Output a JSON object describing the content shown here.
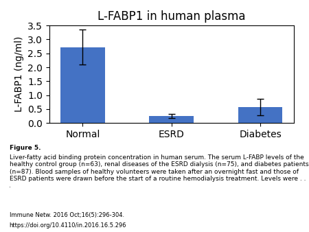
{
  "chart_data": {
    "type": "bar",
    "title": "L-FABP1 in human plasma",
    "categories": [
      "Normal",
      "ESRD",
      "Diabetes"
    ],
    "values": [
      2.72,
      0.25,
      0.57
    ],
    "errors": [
      0.63,
      0.07,
      0.3
    ],
    "color": "#4472C4",
    "ylabel": "L-FABP1 (ng/ml)",
    "ylim": [
      0,
      3.5
    ],
    "yticks": [
      {
        "value": 0,
        "label": "0.0"
      },
      0.5,
      {
        "value": 1,
        "label": "1.0"
      },
      1.5,
      {
        "value": 2,
        "label": "2.0"
      },
      2.5,
      {
        "value": 3,
        "label": "3.0"
      },
      3.5
    ],
    "grid": false,
    "annotations": [
      "Figure 5.",
      "Liver-fatty acid binding protein concentration in human serum. The serum L-FABP levels of the healthy control group (n=63), renal diseases of the ESRD dialysis (n=75), and diabetes patients (n=87). Blood samples of healthy volunteers were taken after an overnight fast and those of ESRD patients were drawn before the start of a routine hemodialysis treatment. Levels were . . .",
      "Immune Netw. 2016 Oct;16(5):296-304.",
      "https://doi.org/10.4110/in.2016.16.5.296"
    ]
  }
}
